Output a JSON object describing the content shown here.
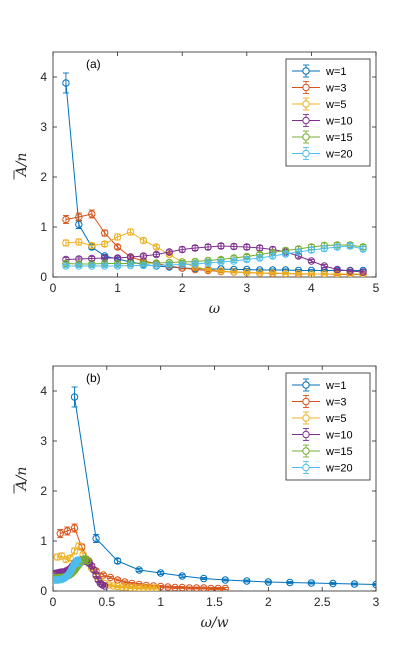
{
  "colors": {
    "w1": "#0072BD",
    "w3": "#D95319",
    "w5": "#EDB120",
    "w10": "#7E2F8E",
    "w15": "#77AC30",
    "w20": "#4DBEEE"
  },
  "chart_data": [
    {
      "type": "line",
      "panel_label": "(a)",
      "xlabel": "ω",
      "ylabel_main": "A",
      "ylabel_rest": "/n",
      "xlim": [
        0,
        5
      ],
      "ylim": [
        0,
        4.5
      ],
      "xticks": [
        0,
        1,
        2,
        3,
        4,
        5
      ],
      "yticks": [
        0,
        1,
        2,
        3,
        4
      ],
      "grid": false,
      "legend_position": "top-right",
      "error_bars": true,
      "series": [
        {
          "name": "w=1",
          "color_key": "w1",
          "x": [
            0.2,
            0.4,
            0.6,
            0.8,
            1.0,
            1.2,
            1.4,
            1.6,
            1.8,
            2.0,
            2.2,
            2.4,
            2.6,
            2.8,
            3.0,
            3.2,
            3.4,
            3.6,
            3.8,
            4.0,
            4.2,
            4.4,
            4.6,
            4.8
          ],
          "y": [
            3.88,
            1.05,
            0.6,
            0.42,
            0.36,
            0.3,
            0.25,
            0.22,
            0.2,
            0.18,
            0.17,
            0.16,
            0.16,
            0.15,
            0.15,
            0.14,
            0.14,
            0.14,
            0.13,
            0.13,
            0.13,
            0.13,
            0.13,
            0.13
          ],
          "err": [
            0.2,
            0.08,
            0.05,
            0.03,
            0.03,
            0.03,
            0.02,
            0.02,
            0.02,
            0.02,
            0.02,
            0.02,
            0.02,
            0.02,
            0.02,
            0.02,
            0.02,
            0.02,
            0.02,
            0.02,
            0.02,
            0.02,
            0.02,
            0.02
          ]
        },
        {
          "name": "w=3",
          "color_key": "w3",
          "x": [
            0.2,
            0.4,
            0.6,
            0.8,
            1.0,
            1.2,
            1.4,
            1.6,
            1.8,
            2.0,
            2.2,
            2.4,
            2.6,
            2.8,
            3.0,
            3.2,
            3.4,
            3.6,
            3.8,
            4.0,
            4.2,
            4.4,
            4.6,
            4.8
          ],
          "y": [
            1.15,
            1.2,
            1.26,
            0.88,
            0.6,
            0.4,
            0.32,
            0.27,
            0.22,
            0.18,
            0.15,
            0.13,
            0.11,
            0.1,
            0.09,
            0.08,
            0.07,
            0.07,
            0.06,
            0.06,
            0.06,
            0.05,
            0.05,
            0.05
          ],
          "err": [
            0.08,
            0.08,
            0.08,
            0.06,
            0.04,
            0.03,
            0.03,
            0.02,
            0.02,
            0.02,
            0.02,
            0.02,
            0.02,
            0.02,
            0.02,
            0.02,
            0.02,
            0.02,
            0.02,
            0.02,
            0.02,
            0.02,
            0.02,
            0.02
          ]
        },
        {
          "name": "w=5",
          "color_key": "w5",
          "x": [
            0.2,
            0.4,
            0.6,
            0.8,
            1.0,
            1.2,
            1.4,
            1.6,
            1.8,
            2.0,
            2.2,
            2.4,
            2.6,
            2.8,
            3.0,
            3.2,
            3.4,
            3.6,
            3.8,
            4.0,
            4.2,
            4.4,
            4.6,
            4.8
          ],
          "y": [
            0.68,
            0.7,
            0.63,
            0.66,
            0.8,
            0.9,
            0.73,
            0.6,
            0.45,
            0.3,
            0.2,
            0.15,
            0.12,
            0.1,
            0.09,
            0.08,
            0.08,
            0.07,
            0.07,
            0.06,
            0.06,
            0.06,
            0.06,
            0.06
          ],
          "err": [
            0.06,
            0.06,
            0.05,
            0.05,
            0.06,
            0.06,
            0.05,
            0.04,
            0.03,
            0.03,
            0.02,
            0.02,
            0.02,
            0.02,
            0.02,
            0.02,
            0.02,
            0.02,
            0.02,
            0.02,
            0.02,
            0.02,
            0.02,
            0.02
          ]
        },
        {
          "name": "w=10",
          "color_key": "w10",
          "x": [
            0.2,
            0.4,
            0.6,
            0.8,
            1.0,
            1.2,
            1.4,
            1.6,
            1.8,
            2.0,
            2.2,
            2.4,
            2.6,
            2.8,
            3.0,
            3.2,
            3.4,
            3.6,
            3.8,
            4.0,
            4.2,
            4.4,
            4.6,
            4.8
          ],
          "y": [
            0.35,
            0.36,
            0.37,
            0.38,
            0.38,
            0.4,
            0.42,
            0.45,
            0.5,
            0.55,
            0.58,
            0.6,
            0.62,
            0.61,
            0.6,
            0.58,
            0.55,
            0.5,
            0.42,
            0.32,
            0.22,
            0.15,
            0.12,
            0.1
          ],
          "err": [
            0.04,
            0.04,
            0.04,
            0.04,
            0.04,
            0.04,
            0.04,
            0.04,
            0.04,
            0.05,
            0.05,
            0.05,
            0.05,
            0.05,
            0.05,
            0.05,
            0.05,
            0.04,
            0.04,
            0.03,
            0.03,
            0.02,
            0.02,
            0.02
          ]
        },
        {
          "name": "w=15",
          "color_key": "w15",
          "x": [
            0.2,
            0.4,
            0.6,
            0.8,
            1.0,
            1.2,
            1.4,
            1.6,
            1.8,
            2.0,
            2.2,
            2.4,
            2.6,
            2.8,
            3.0,
            3.2,
            3.4,
            3.6,
            3.8,
            4.0,
            4.2,
            4.4,
            4.6,
            4.8
          ],
          "y": [
            0.27,
            0.26,
            0.26,
            0.27,
            0.27,
            0.27,
            0.28,
            0.28,
            0.29,
            0.3,
            0.31,
            0.33,
            0.35,
            0.38,
            0.41,
            0.45,
            0.49,
            0.53,
            0.56,
            0.6,
            0.63,
            0.64,
            0.64,
            0.6
          ],
          "err": [
            0.03,
            0.03,
            0.03,
            0.03,
            0.03,
            0.03,
            0.03,
            0.03,
            0.03,
            0.03,
            0.03,
            0.03,
            0.04,
            0.04,
            0.04,
            0.04,
            0.04,
            0.05,
            0.05,
            0.05,
            0.05,
            0.05,
            0.05,
            0.05
          ]
        },
        {
          "name": "w=20",
          "color_key": "w20",
          "x": [
            0.2,
            0.4,
            0.6,
            0.8,
            1.0,
            1.2,
            1.4,
            1.6,
            1.8,
            2.0,
            2.2,
            2.4,
            2.6,
            2.8,
            3.0,
            3.2,
            3.4,
            3.6,
            3.8,
            4.0,
            4.2,
            4.4,
            4.6,
            4.8
          ],
          "y": [
            0.22,
            0.22,
            0.22,
            0.22,
            0.22,
            0.23,
            0.23,
            0.23,
            0.24,
            0.25,
            0.26,
            0.28,
            0.3,
            0.32,
            0.35,
            0.38,
            0.42,
            0.46,
            0.5,
            0.54,
            0.57,
            0.6,
            0.62,
            0.56
          ],
          "err": [
            0.03,
            0.03,
            0.03,
            0.03,
            0.03,
            0.03,
            0.03,
            0.03,
            0.03,
            0.03,
            0.03,
            0.03,
            0.03,
            0.03,
            0.04,
            0.04,
            0.04,
            0.04,
            0.04,
            0.05,
            0.05,
            0.05,
            0.05,
            0.05
          ]
        }
      ]
    },
    {
      "type": "line",
      "panel_label": "(b)",
      "xlabel": "ω/w",
      "ylabel_main": "A",
      "ylabel_rest": "/n",
      "xlim": [
        0,
        3
      ],
      "ylim": [
        0,
        4.5
      ],
      "xticks": [
        0,
        0.5,
        1,
        1.5,
        2,
        2.5,
        3
      ],
      "xtick_labels": [
        "0",
        "0.5",
        "1",
        "1.5",
        "2",
        "2.5",
        "3"
      ],
      "yticks": [
        0,
        1,
        2,
        3,
        4
      ],
      "grid": false,
      "legend_position": "top-right",
      "error_bars": true,
      "series": [
        {
          "name": "w=1",
          "color_key": "w1",
          "x": [
            0.2,
            0.4,
            0.6,
            0.8,
            1.0,
            1.2,
            1.4,
            1.6,
            1.8,
            2.0,
            2.2,
            2.4,
            2.6,
            2.8,
            3.0
          ],
          "y": [
            3.88,
            1.05,
            0.6,
            0.42,
            0.36,
            0.3,
            0.25,
            0.22,
            0.2,
            0.18,
            0.17,
            0.16,
            0.15,
            0.14,
            0.13
          ],
          "err": [
            0.2,
            0.08,
            0.05,
            0.03,
            0.03,
            0.03,
            0.02,
            0.02,
            0.02,
            0.02,
            0.02,
            0.02,
            0.02,
            0.02,
            0.02
          ]
        },
        {
          "name": "w=3",
          "color_key": "w3",
          "x": [
            0.067,
            0.133,
            0.2,
            0.267,
            0.333,
            0.4,
            0.467,
            0.533,
            0.6,
            0.667,
            0.733,
            0.8,
            0.867,
            0.933,
            1.0,
            1.067,
            1.133,
            1.2,
            1.267,
            1.333,
            1.4,
            1.467,
            1.533,
            1.6
          ],
          "y": [
            1.15,
            1.2,
            1.26,
            0.88,
            0.6,
            0.4,
            0.32,
            0.27,
            0.22,
            0.18,
            0.15,
            0.13,
            0.11,
            0.1,
            0.09,
            0.08,
            0.07,
            0.07,
            0.06,
            0.06,
            0.06,
            0.05,
            0.05,
            0.05
          ],
          "err": [
            0.08,
            0.08,
            0.08,
            0.06,
            0.04,
            0.03,
            0.03,
            0.02,
            0.02,
            0.02,
            0.02,
            0.02,
            0.02,
            0.02,
            0.02,
            0.02,
            0.02,
            0.02,
            0.02,
            0.02,
            0.02,
            0.02,
            0.02,
            0.02
          ]
        },
        {
          "name": "w=5",
          "color_key": "w5",
          "x": [
            0.04,
            0.08,
            0.12,
            0.16,
            0.2,
            0.24,
            0.28,
            0.32,
            0.36,
            0.4,
            0.44,
            0.48,
            0.52,
            0.56,
            0.6,
            0.64,
            0.68,
            0.72,
            0.76,
            0.8,
            0.84,
            0.88,
            0.92,
            0.96
          ],
          "y": [
            0.68,
            0.7,
            0.63,
            0.66,
            0.8,
            0.9,
            0.73,
            0.6,
            0.45,
            0.3,
            0.2,
            0.15,
            0.12,
            0.1,
            0.09,
            0.08,
            0.08,
            0.07,
            0.07,
            0.06,
            0.06,
            0.06,
            0.06,
            0.06
          ],
          "err": [
            0.06,
            0.06,
            0.05,
            0.05,
            0.06,
            0.06,
            0.05,
            0.04,
            0.03,
            0.03,
            0.02,
            0.02,
            0.02,
            0.02,
            0.02,
            0.02,
            0.02,
            0.02,
            0.02,
            0.02,
            0.02,
            0.02,
            0.02,
            0.02
          ]
        },
        {
          "name": "w=10",
          "color_key": "w10",
          "x": [
            0.02,
            0.04,
            0.06,
            0.08,
            0.1,
            0.12,
            0.14,
            0.16,
            0.18,
            0.2,
            0.22,
            0.24,
            0.26,
            0.28,
            0.3,
            0.32,
            0.34,
            0.36,
            0.38,
            0.4,
            0.42,
            0.44,
            0.46,
            0.48
          ],
          "y": [
            0.35,
            0.36,
            0.37,
            0.38,
            0.38,
            0.4,
            0.42,
            0.45,
            0.5,
            0.55,
            0.58,
            0.6,
            0.62,
            0.61,
            0.6,
            0.58,
            0.55,
            0.5,
            0.42,
            0.32,
            0.22,
            0.15,
            0.12,
            0.1
          ],
          "err": [
            0.04,
            0.04,
            0.04,
            0.04,
            0.04,
            0.04,
            0.04,
            0.04,
            0.04,
            0.05,
            0.05,
            0.05,
            0.05,
            0.05,
            0.05,
            0.05,
            0.05,
            0.04,
            0.04,
            0.03,
            0.03,
            0.02,
            0.02,
            0.02
          ]
        },
        {
          "name": "w=15",
          "color_key": "w15",
          "x": [
            0.013,
            0.027,
            0.04,
            0.053,
            0.067,
            0.08,
            0.093,
            0.107,
            0.12,
            0.133,
            0.147,
            0.16,
            0.173,
            0.187,
            0.2,
            0.213,
            0.227,
            0.24,
            0.253,
            0.267,
            0.28,
            0.293,
            0.307,
            0.32
          ],
          "y": [
            0.27,
            0.26,
            0.26,
            0.27,
            0.27,
            0.27,
            0.28,
            0.28,
            0.29,
            0.3,
            0.31,
            0.33,
            0.35,
            0.38,
            0.41,
            0.45,
            0.49,
            0.53,
            0.56,
            0.6,
            0.63,
            0.64,
            0.64,
            0.6
          ],
          "err": [
            0.03,
            0.03,
            0.03,
            0.03,
            0.03,
            0.03,
            0.03,
            0.03,
            0.03,
            0.03,
            0.03,
            0.03,
            0.04,
            0.04,
            0.04,
            0.04,
            0.04,
            0.05,
            0.05,
            0.05,
            0.05,
            0.05,
            0.05,
            0.05
          ]
        },
        {
          "name": "w=20",
          "color_key": "w20",
          "x": [
            0.01,
            0.02,
            0.03,
            0.04,
            0.05,
            0.06,
            0.07,
            0.08,
            0.09,
            0.1,
            0.11,
            0.12,
            0.13,
            0.14,
            0.15,
            0.16,
            0.17,
            0.18,
            0.19,
            0.2,
            0.21,
            0.22,
            0.23,
            0.24
          ],
          "y": [
            0.22,
            0.22,
            0.22,
            0.22,
            0.22,
            0.23,
            0.23,
            0.23,
            0.24,
            0.25,
            0.26,
            0.28,
            0.3,
            0.32,
            0.35,
            0.38,
            0.42,
            0.46,
            0.5,
            0.54,
            0.57,
            0.6,
            0.62,
            0.56
          ],
          "err": [
            0.03,
            0.03,
            0.03,
            0.03,
            0.03,
            0.03,
            0.03,
            0.03,
            0.03,
            0.03,
            0.03,
            0.03,
            0.03,
            0.03,
            0.04,
            0.04,
            0.04,
            0.04,
            0.04,
            0.05,
            0.05,
            0.05,
            0.05,
            0.05
          ]
        }
      ]
    }
  ]
}
